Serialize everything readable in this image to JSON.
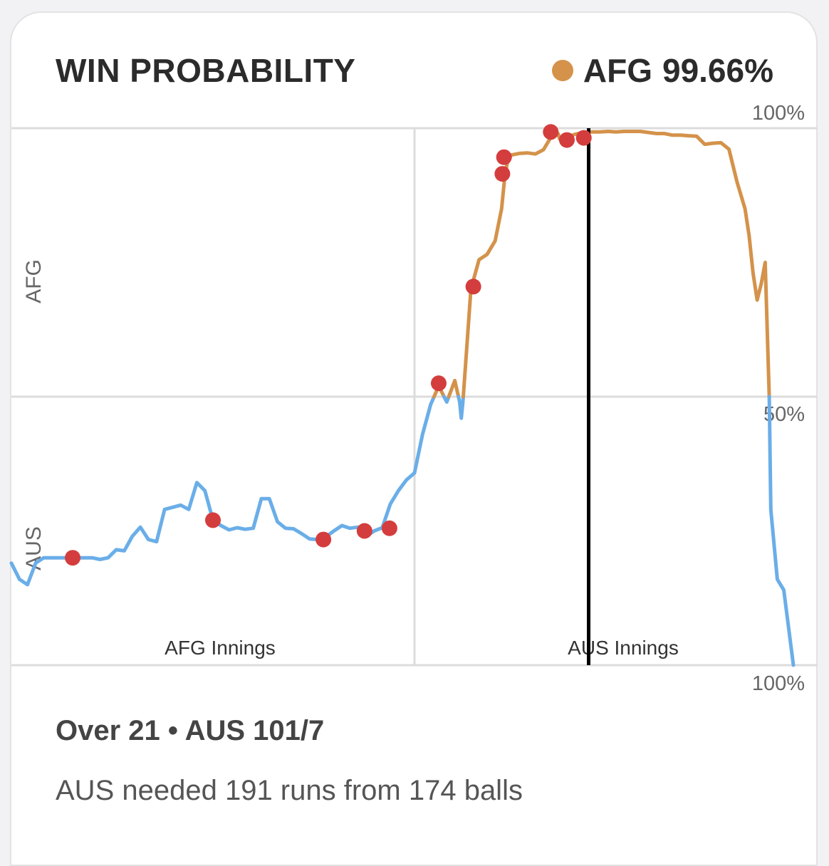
{
  "header": {
    "title": "WIN PROBABILITY",
    "legend_team": "AFG",
    "legend_value": "99.66%"
  },
  "summary": {
    "over": "Over 21",
    "separator": "•",
    "score": "AUS 101/7",
    "description": "AUS needed 191 runs from 174 balls"
  },
  "colors": {
    "afg": "#d4924a",
    "aus": "#6aaee8",
    "wicket": "#d43d3d",
    "grid": "#dcdcdc",
    "marker": "#000000"
  },
  "chart_data": {
    "type": "line",
    "title": "WIN PROBABILITY",
    "y_top_team": "AFG",
    "y_bottom_team": "AUS",
    "y_tick_labels": {
      "top": "100%",
      "middle": "50%",
      "bottom": "100%"
    },
    "ylim": [
      0,
      100
    ],
    "xlim": [
      0,
      100
    ],
    "innings_labels": [
      "AFG Innings",
      "AUS Innings"
    ],
    "innings_divider_x": 50,
    "current_marker_x": 71.6,
    "series": [
      {
        "values": [
          [
            0,
            19
          ],
          [
            1,
            16
          ],
          [
            2,
            15
          ],
          [
            3,
            19
          ],
          [
            4,
            20
          ],
          [
            5,
            20
          ],
          [
            6,
            20
          ],
          [
            7,
            20
          ],
          [
            8,
            20
          ],
          [
            9,
            20
          ],
          [
            10,
            20
          ],
          [
            11,
            19.7
          ],
          [
            12,
            20
          ],
          [
            13,
            21.5
          ],
          [
            14,
            21.3
          ],
          [
            15,
            24
          ],
          [
            16,
            25.7
          ],
          [
            17,
            23.4
          ],
          [
            18,
            23
          ],
          [
            19,
            29
          ],
          [
            20,
            29.4
          ],
          [
            21,
            29.8
          ],
          [
            22,
            29
          ],
          [
            23,
            34
          ],
          [
            24,
            32.5
          ],
          [
            25,
            27
          ],
          [
            26,
            26
          ],
          [
            27,
            25.2
          ],
          [
            28,
            25.6
          ],
          [
            29,
            25.3
          ],
          [
            30,
            25.5
          ],
          [
            31,
            31
          ],
          [
            32,
            31
          ],
          [
            33,
            26.7
          ],
          [
            34,
            25.5
          ],
          [
            35,
            25.4
          ],
          [
            36,
            24.5
          ],
          [
            37,
            23.5
          ],
          [
            38,
            23.4
          ],
          [
            39,
            23.9
          ],
          [
            40,
            25
          ],
          [
            41,
            26
          ],
          [
            42,
            25.5
          ],
          [
            43,
            25.7
          ],
          [
            44,
            24
          ],
          [
            45,
            25
          ],
          [
            46,
            25.6
          ],
          [
            47,
            30
          ],
          [
            48,
            32.5
          ],
          [
            49,
            34.5
          ],
          [
            50,
            35.8
          ],
          [
            51,
            43
          ],
          [
            52,
            48.5
          ],
          [
            53,
            52
          ],
          [
            54,
            49
          ],
          [
            55,
            53
          ],
          [
            55.6,
            49
          ],
          [
            55.8,
            46
          ],
          [
            56,
            49
          ],
          [
            57,
            70
          ],
          [
            58,
            75.5
          ],
          [
            59,
            76.5
          ],
          [
            60,
            79
          ],
          [
            60.8,
            85
          ],
          [
            61.2,
            91
          ],
          [
            61.5,
            93.5
          ],
          [
            62,
            95
          ],
          [
            63,
            95.3
          ],
          [
            64,
            95.4
          ],
          [
            65,
            95.2
          ],
          [
            66,
            96
          ],
          [
            67,
            98.5
          ],
          [
            67.8,
            99
          ],
          [
            68,
            98
          ],
          [
            69,
            98.4
          ],
          [
            70,
            98.9
          ],
          [
            71,
            99.2
          ],
          [
            72,
            99.3
          ],
          [
            73,
            99.3
          ],
          [
            74,
            99.4
          ],
          [
            75,
            99.3
          ],
          [
            76,
            99.4
          ],
          [
            77,
            99.4
          ],
          [
            78,
            99.4
          ],
          [
            79,
            99.2
          ],
          [
            80,
            99
          ],
          [
            81,
            99
          ],
          [
            82,
            98.7
          ],
          [
            83,
            98.7
          ],
          [
            84,
            98.6
          ],
          [
            85,
            98.5
          ],
          [
            86,
            97
          ],
          [
            87,
            97.2
          ],
          [
            88,
            97.3
          ],
          [
            89,
            96.1
          ],
          [
            90,
            90
          ],
          [
            91,
            85
          ],
          [
            91.5,
            80
          ],
          [
            92,
            73
          ],
          [
            92.5,
            68
          ],
          [
            93,
            71
          ],
          [
            93.5,
            75
          ],
          [
            94,
            50
          ],
          [
            94.2,
            29
          ],
          [
            95,
            16
          ],
          [
            95.8,
            14
          ],
          [
            97,
            0
          ]
        ]
      }
    ],
    "wickets": [
      [
        7.6,
        20
      ],
      [
        25,
        27
      ],
      [
        38.7,
        23.4
      ],
      [
        43.8,
        25
      ],
      [
        46.9,
        25.5
      ],
      [
        53,
        52.5
      ],
      [
        57.3,
        70.5
      ],
      [
        60.9,
        91.5
      ],
      [
        61.1,
        94.6
      ],
      [
        66.9,
        99.3
      ],
      [
        68.9,
        97.8
      ],
      [
        71,
        98.2
      ]
    ]
  }
}
